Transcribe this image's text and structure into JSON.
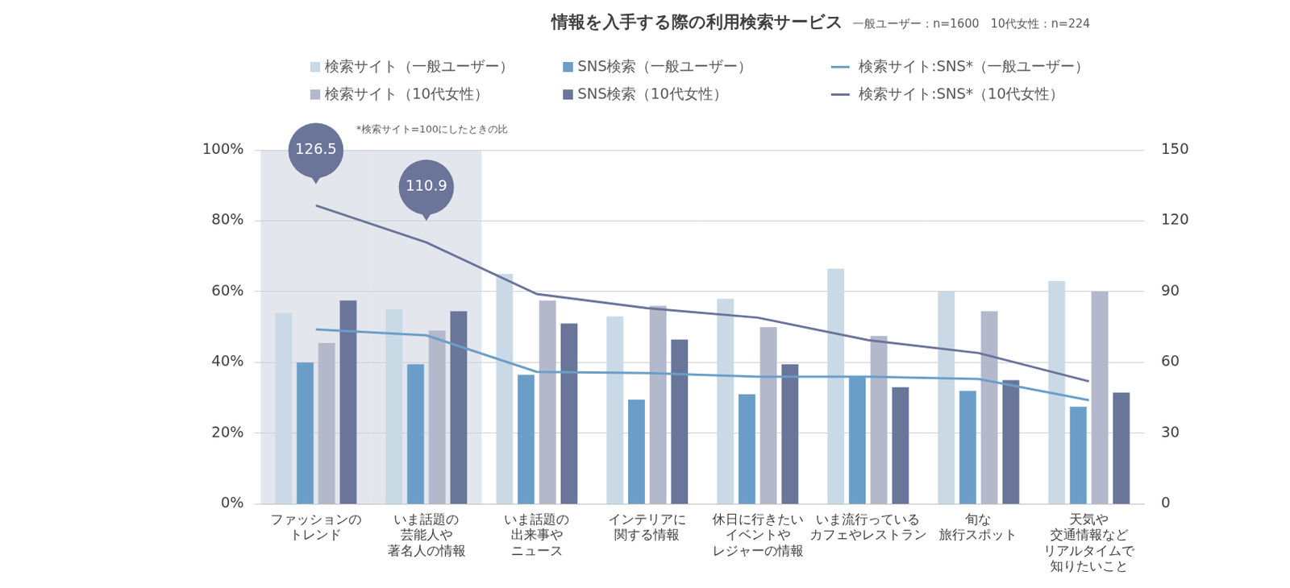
{
  "chart_data": {
    "type": "bar",
    "title": "情報を入手する際の利用検索サービス",
    "subtitle": "一般ユーザー：n=1600　10代女性：n=224",
    "annotations": [
      "*検索サイト=100にしたときの比"
    ],
    "categories": [
      [
        "ファッションの",
        "トレンド"
      ],
      [
        "いま話題の",
        "芸能人や",
        "著名人の情報"
      ],
      [
        "いま話題の",
        "出来事や",
        "ニュース"
      ],
      [
        "インテリアに",
        "関する情報"
      ],
      [
        "休日に行きたい",
        "イベントや",
        "レジャーの情報"
      ],
      [
        "いま流行っている",
        "カフェやレストラン"
      ],
      [
        "旬な",
        "旅行スポット"
      ],
      [
        "天気や",
        "交通情報など",
        "リアルタイムで",
        "知りたいこと"
      ]
    ],
    "series": [
      {
        "name": "検索サイト（一般ユーザー）",
        "type": "bar",
        "color": "#c9d9e6",
        "values": [
          54,
          55,
          65,
          53,
          58,
          66.5,
          60,
          63
        ]
      },
      {
        "name": "SNS検索（一般ユーザー）",
        "type": "bar",
        "color": "#6a9ec8",
        "values": [
          40,
          39.5,
          36.5,
          29.5,
          31,
          36,
          32,
          27.5
        ]
      },
      {
        "name": "検索サイト:SNS*（一般ユーザー）",
        "type": "line",
        "axis": "y2",
        "color": "#6a9ec8",
        "marker": "none",
        "values": [
          74,
          71.5,
          56,
          55.5,
          54,
          54,
          53,
          44
        ]
      },
      {
        "name": "検索サイト（10代女性）",
        "type": "bar",
        "color": "#b3b8cb",
        "values": [
          45.5,
          49,
          57.5,
          56,
          50,
          47.5,
          54.5,
          60
        ]
      },
      {
        "name": "SNS検索（10代女性）",
        "type": "bar",
        "color": "#69769a",
        "values": [
          57.5,
          54.5,
          51,
          46.5,
          39.5,
          33,
          35,
          31.5
        ]
      },
      {
        "name": "検索サイト:SNS*（10代女性）",
        "type": "line",
        "axis": "y2",
        "color": "#6b7499",
        "marker": "none",
        "values": [
          126.5,
          110.9,
          89,
          83,
          79,
          69.5,
          64,
          52
        ],
        "value_labels": [
          "126.5",
          "110.9",
          null,
          null,
          null,
          null,
          null,
          null
        ]
      }
    ],
    "ylim": [
      0,
      100
    ],
    "yticks": [
      {
        "value": 0,
        "label": "0%"
      },
      {
        "value": 20,
        "label": "20%"
      },
      {
        "value": 40,
        "label": "40%"
      },
      {
        "value": 60,
        "label": "60%"
      },
      {
        "value": 80,
        "label": "80%"
      },
      {
        "value": 100,
        "label": "100%"
      }
    ],
    "y2lim": [
      0,
      150
    ],
    "y2ticks": [
      0,
      30,
      60,
      90,
      120,
      150
    ],
    "grid": true,
    "legend": "top"
  }
}
